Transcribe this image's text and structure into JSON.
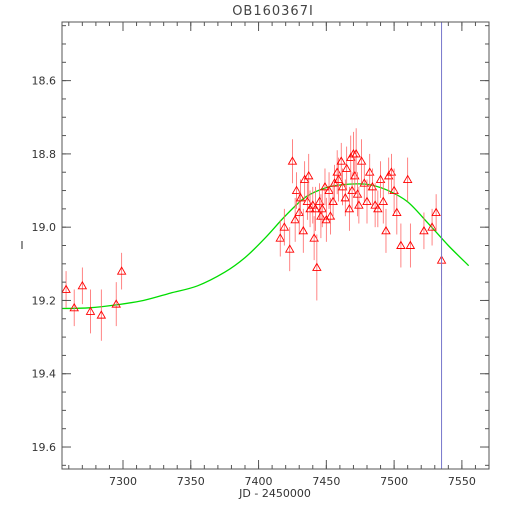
{
  "chart_data": {
    "type": "scatter",
    "title": "OB160367I",
    "xlabel": "JD - 2450000",
    "ylabel": "I",
    "xlim": [
      7255,
      7570
    ],
    "ylim": [
      19.66,
      18.44
    ],
    "y_inverted": true,
    "x_major_ticks": [
      7300,
      7350,
      7400,
      7450,
      7500,
      7550
    ],
    "x_tick_labels": [
      "7300",
      "7350",
      "7400",
      "7450",
      "7500",
      "7550"
    ],
    "y_major_ticks": [
      18.6,
      18.8,
      19.0,
      19.2,
      19.4,
      19.6
    ],
    "y_tick_labels": [
      "18.6",
      "18.8",
      "19.0",
      "19.2",
      "19.4",
      "19.6"
    ],
    "x_minor_step": 10,
    "y_minor_step": 0.05,
    "grid": false,
    "legend": "none",
    "colors": {
      "data": "#ff0000",
      "errorbar": "#ff6666",
      "model": "#00dd00",
      "marker_line": "#7777cc",
      "frame": "#555555"
    },
    "series": [
      {
        "kind": "points",
        "marker": "triangle",
        "x": [
          7258,
          7264,
          7270,
          7276,
          7284,
          7295,
          7299,
          7416,
          7419,
          7423,
          7425,
          7427,
          7428,
          7430,
          7431,
          7433,
          7434,
          7436,
          7437,
          7438,
          7440,
          7441,
          7442,
          7443,
          7445,
          7446,
          7447,
          7449,
          7450,
          7452,
          7453,
          7455,
          7456,
          7458,
          7459,
          7461,
          7462,
          7464,
          7465,
          7467,
          7468,
          7469,
          7470,
          7471,
          7472,
          7473,
          7474,
          7476,
          7478,
          7480,
          7482,
          7484,
          7486,
          7488,
          7490,
          7492,
          7494,
          7496,
          7498,
          7500,
          7502,
          7505,
          7510,
          7512,
          7522,
          7528,
          7531,
          7535
        ],
        "y": [
          19.17,
          19.22,
          19.16,
          19.23,
          19.24,
          19.21,
          19.12,
          19.03,
          19.0,
          19.06,
          18.82,
          18.98,
          18.9,
          18.96,
          18.92,
          19.01,
          18.87,
          18.93,
          18.86,
          18.95,
          18.94,
          19.03,
          18.95,
          19.11,
          18.93,
          18.97,
          18.95,
          18.89,
          18.98,
          18.9,
          18.97,
          18.93,
          18.88,
          18.85,
          18.87,
          18.82,
          18.89,
          18.92,
          18.84,
          18.95,
          18.81,
          18.9,
          18.8,
          18.86,
          18.8,
          18.91,
          18.94,
          18.82,
          18.88,
          18.93,
          18.85,
          18.89,
          18.94,
          18.95,
          18.87,
          18.93,
          19.01,
          18.86,
          18.85,
          18.9,
          18.96,
          19.05,
          18.87,
          19.05,
          19.01,
          19.0,
          18.96,
          19.09
        ],
        "yerr": [
          0.05,
          0.05,
          0.05,
          0.06,
          0.07,
          0.06,
          0.05,
          0.05,
          0.05,
          0.06,
          0.06,
          0.06,
          0.05,
          0.06,
          0.05,
          0.06,
          0.05,
          0.05,
          0.06,
          0.05,
          0.05,
          0.06,
          0.06,
          0.09,
          0.05,
          0.06,
          0.05,
          0.05,
          0.06,
          0.05,
          0.05,
          0.05,
          0.05,
          0.06,
          0.06,
          0.05,
          0.05,
          0.05,
          0.06,
          0.06,
          0.06,
          0.05,
          0.06,
          0.05,
          0.07,
          0.06,
          0.05,
          0.06,
          0.05,
          0.06,
          0.05,
          0.05,
          0.06,
          0.05,
          0.05,
          0.06,
          0.06,
          0.05,
          0.05,
          0.06,
          0.06,
          0.06,
          0.06,
          0.06,
          0.05,
          0.05,
          0.05,
          0.07
        ]
      },
      {
        "kind": "model-curve",
        "x": [
          7255,
          7275,
          7295,
          7315,
          7335,
          7355,
          7375,
          7390,
          7405,
          7420,
          7435,
          7450,
          7462,
          7472,
          7482,
          7495,
          7510,
          7525,
          7540,
          7555
        ],
        "y": [
          19.222,
          19.22,
          19.212,
          19.2,
          19.18,
          19.16,
          19.123,
          19.083,
          19.029,
          18.968,
          18.917,
          18.892,
          18.884,
          18.882,
          18.884,
          18.899,
          18.931,
          18.989,
          19.05,
          19.105
        ]
      },
      {
        "kind": "vertical-line",
        "x": [
          7535
        ]
      }
    ]
  }
}
